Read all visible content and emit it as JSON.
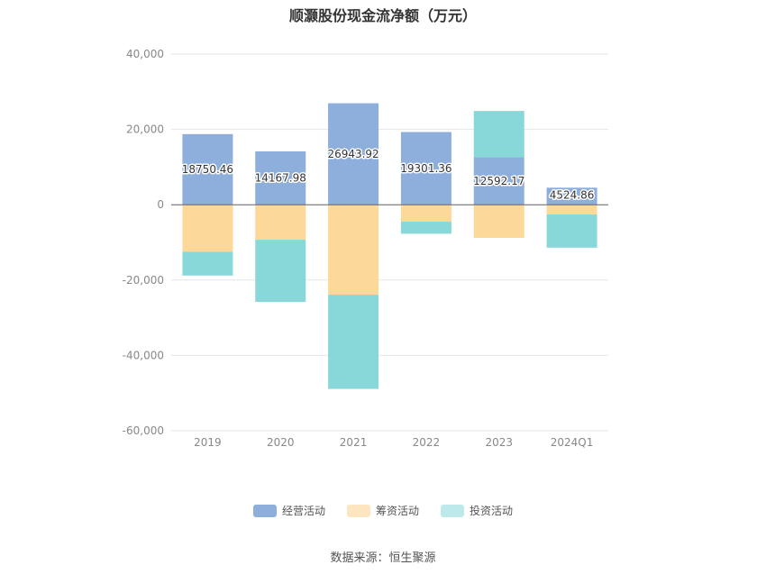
{
  "chart_data": {
    "type": "bar",
    "stacked": true,
    "title": "顺灏股份现金流净额（万元）",
    "categories": [
      "2019",
      "2020",
      "2021",
      "2022",
      "2023",
      "2024Q1"
    ],
    "ylim": [
      -60000,
      40000
    ],
    "yticks": [
      40000,
      20000,
      0,
      -20000,
      -40000,
      -60000
    ],
    "ytick_labels": [
      "40,000",
      "20,000",
      "0",
      "-20,000",
      "-40,000",
      "-60,000"
    ],
    "grid": true,
    "legend_position": "bottom",
    "series": [
      {
        "name": "经营活动",
        "color": "#8eaedb",
        "values": [
          18750.46,
          14167.98,
          26943.92,
          19301.36,
          12592.17,
          4524.86
        ],
        "labels": [
          "18750.46",
          "14167.98",
          "26943.92",
          "19301.36",
          "12592.17",
          "4524.86"
        ]
      },
      {
        "name": "筹资活动",
        "color": "#fdd999",
        "values": [
          -12500,
          -9300,
          -23900,
          -4500,
          -8800,
          -2600
        ]
      },
      {
        "name": "投资活动",
        "color": "#88d7d9",
        "values": [
          -6300,
          -16500,
          -25000,
          -3200,
          12300,
          -8800
        ]
      }
    ]
  },
  "legend": {
    "items": [
      {
        "label": "经营活动",
        "color": "#8eaedb"
      },
      {
        "label": "筹资活动",
        "color": "#fde5c0"
      },
      {
        "label": "投资活动",
        "color": "#bde9ea"
      }
    ]
  },
  "source": "数据来源：恒生聚源"
}
